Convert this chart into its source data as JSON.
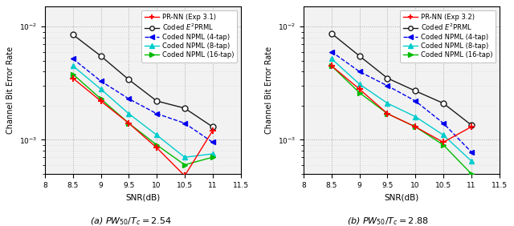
{
  "snr": [
    8.5,
    9.0,
    9.5,
    10.0,
    10.5,
    11.0
  ],
  "subplot_a": {
    "title": "(a) $PW_{50}/T_c = 2.54$",
    "pr_nn": [
      0.0035,
      0.0022,
      0.0014,
      0.00085,
      0.00048,
      0.0012
    ],
    "e2prml": [
      0.0085,
      0.0055,
      0.0034,
      0.0022,
      0.0019,
      0.0013
    ],
    "npml4": [
      0.0052,
      0.0033,
      0.0023,
      0.0017,
      0.0014,
      0.00095
    ],
    "npml8": [
      0.0045,
      0.0028,
      0.0017,
      0.0011,
      0.0007,
      0.00075
    ],
    "npml16": [
      0.0038,
      0.0023,
      0.0014,
      0.0009,
      0.0006,
      0.0007
    ],
    "legend_label": "PR-NN (Exp 3.1)"
  },
  "subplot_b": {
    "title": "(b) $PW_{50}/T_c = 2.88$",
    "pr_nn": [
      0.0045,
      0.0028,
      0.0017,
      0.0013,
      0.00095,
      0.0013
    ],
    "e2prml": [
      0.0087,
      0.0055,
      0.0035,
      0.0027,
      0.0021,
      0.00135
    ],
    "npml4": [
      0.006,
      0.004,
      0.003,
      0.0022,
      0.0014,
      0.00078
    ],
    "npml8": [
      0.0052,
      0.0031,
      0.0021,
      0.0016,
      0.0011,
      0.00065
    ],
    "npml16": [
      0.0045,
      0.0026,
      0.0017,
      0.0013,
      0.0009,
      0.0005
    ],
    "legend_label": "PR-NN (Exp 3.2)"
  },
  "colors": {
    "pr_nn": "#FF0000",
    "e2prml": "#1a1a1a",
    "npml4": "#0000EE",
    "npml8": "#00CCCC",
    "npml16": "#00BB00"
  },
  "xlim": [
    8.0,
    11.5
  ],
  "xlabel": "SNR(dB)",
  "ylabel": "Channel Bit Error Rate",
  "face_color": "#f2f2f2"
}
